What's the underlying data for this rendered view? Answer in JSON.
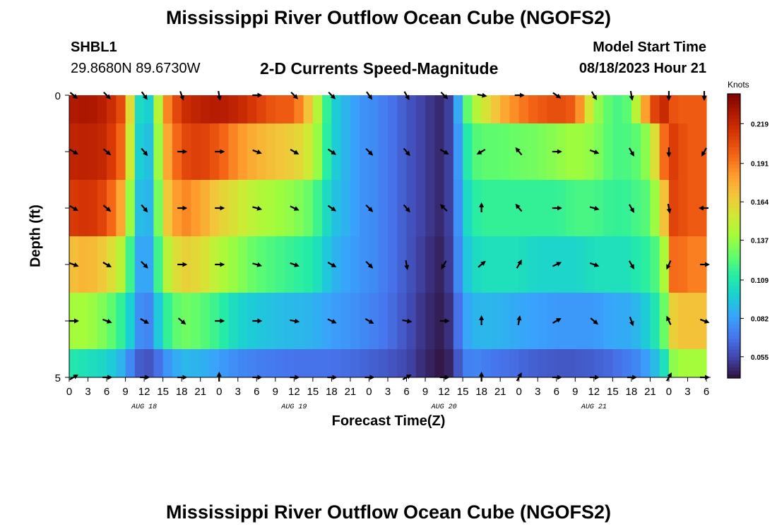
{
  "header": {
    "title": "Mississippi River Outflow Ocean Cube (NGOFS2)",
    "station_id": "SHBL1",
    "station_coords": "29.8680N  89.6730W",
    "subtitle": "2-D Currents Speed-Magnitude",
    "model_start_label": "Model Start Time",
    "model_start_value": "08/18/2023 Hour 21"
  },
  "footer": {
    "title": "Mississippi River Outflow Ocean Cube (NGOFS2)"
  },
  "chart_data": {
    "type": "heatmap",
    "xlabel": "Forecast Time(Z)",
    "ylabel": "Depth (ft)",
    "x_hours_from_start": [
      0,
      3,
      6,
      9,
      12,
      15,
      18,
      21,
      24,
      27,
      30,
      33,
      36,
      39,
      42,
      45,
      48,
      51,
      54,
      57,
      60,
      63,
      66,
      69,
      72,
      75,
      78,
      81,
      84,
      87
    ],
    "x_tick_labels": [
      "0",
      "3",
      "6",
      "9",
      "12",
      "15",
      "18",
      "21",
      "0",
      "3",
      "6",
      "9",
      "12",
      "15",
      "18",
      "21",
      "0",
      "3",
      "6",
      "9",
      "12",
      "15",
      "18",
      "21",
      "0",
      "3",
      "6",
      "9",
      "12",
      "15",
      "18",
      "21",
      "0",
      "3",
      "6"
    ],
    "x_tick_hours": [
      0,
      3,
      6,
      9,
      12,
      15,
      18,
      21,
      24,
      27,
      30,
      33,
      36,
      39,
      42,
      45,
      48,
      51,
      54,
      57,
      60,
      63,
      66,
      69,
      72,
      75,
      78,
      81,
      84,
      87,
      90,
      93,
      96,
      99,
      102
    ],
    "date_labels": [
      {
        "label": "AUG 18",
        "hour": 12
      },
      {
        "label": "AUG 19",
        "hour": 36
      },
      {
        "label": "AUG 20",
        "hour": 60
      },
      {
        "label": "AUG 21",
        "hour": 84
      }
    ],
    "y_tick_labels": [
      "0",
      "5"
    ],
    "ylim": [
      5,
      0
    ],
    "depth_levels": 5,
    "colorbar": {
      "unit": "Knots",
      "ticks": [
        "0.219",
        "0.191",
        "0.164",
        "0.137",
        "0.109",
        "0.082",
        "0.055"
      ],
      "range": [
        0.04,
        0.24
      ],
      "colors": [
        "#30123b",
        "#4145ab",
        "#4675ed",
        "#39a2fc",
        "#1bcfd4",
        "#24eca6",
        "#61fc6c",
        "#a4fc3b",
        "#d1e834",
        "#f3c63a",
        "#fe9b2d",
        "#f36315",
        "#d93806",
        "#b11901",
        "#7a0403"
      ]
    },
    "time_hours": [
      0,
      3,
      6,
      9,
      10.5,
      12,
      13.5,
      15,
      18,
      21,
      24,
      27,
      30,
      33,
      36,
      39,
      42,
      45,
      47,
      49,
      51,
      54,
      57,
      60,
      61.5,
      63,
      64.5,
      66,
      69,
      72,
      75,
      78,
      81,
      84,
      87,
      89,
      91,
      93,
      95,
      96,
      97,
      99,
      100,
      101,
      102
    ],
    "speed_by_layer": [
      [
        0.225,
        0.228,
        0.222,
        0.2,
        0.12,
        0.085,
        0.11,
        0.18,
        0.215,
        0.222,
        0.225,
        0.22,
        0.21,
        0.2,
        0.2,
        0.16,
        0.1,
        0.085,
        0.078,
        0.075,
        0.07,
        0.06,
        0.052,
        0.045,
        0.06,
        0.11,
        0.14,
        0.15,
        0.175,
        0.19,
        0.2,
        0.205,
        0.2,
        0.14,
        0.12,
        0.12,
        0.15,
        0.2,
        0.22,
        0.21,
        0.2,
        0.2,
        0.2,
        0.2,
        0.2
      ],
      [
        0.22,
        0.222,
        0.218,
        0.19,
        0.115,
        0.08,
        0.105,
        0.17,
        0.205,
        0.21,
        0.2,
        0.185,
        0.175,
        0.17,
        0.165,
        0.15,
        0.1,
        0.085,
        0.078,
        0.075,
        0.07,
        0.06,
        0.052,
        0.045,
        0.06,
        0.1,
        0.12,
        0.125,
        0.125,
        0.128,
        0.13,
        0.135,
        0.14,
        0.135,
        0.12,
        0.12,
        0.125,
        0.14,
        0.19,
        0.21,
        0.21,
        0.2,
        0.2,
        0.2,
        0.2
      ],
      [
        0.21,
        0.215,
        0.205,
        0.17,
        0.105,
        0.078,
        0.1,
        0.16,
        0.19,
        0.18,
        0.165,
        0.155,
        0.145,
        0.14,
        0.135,
        0.125,
        0.095,
        0.085,
        0.078,
        0.075,
        0.07,
        0.06,
        0.052,
        0.045,
        0.06,
        0.095,
        0.11,
        0.115,
        0.115,
        0.115,
        0.115,
        0.115,
        0.12,
        0.12,
        0.115,
        0.115,
        0.12,
        0.125,
        0.16,
        0.2,
        0.21,
        0.2,
        0.2,
        0.2,
        0.2
      ],
      [
        0.17,
        0.175,
        0.165,
        0.14,
        0.095,
        0.074,
        0.095,
        0.14,
        0.165,
        0.16,
        0.145,
        0.135,
        0.125,
        0.12,
        0.115,
        0.11,
        0.09,
        0.082,
        0.078,
        0.075,
        0.07,
        0.06,
        0.05,
        0.043,
        0.06,
        0.09,
        0.1,
        0.105,
        0.105,
        0.105,
        0.1,
        0.1,
        0.1,
        0.105,
        0.105,
        0.105,
        0.11,
        0.115,
        0.13,
        0.18,
        0.2,
        0.19,
        0.19,
        0.19,
        0.19
      ],
      [
        0.14,
        0.14,
        0.13,
        0.11,
        0.085,
        0.068,
        0.08,
        0.11,
        0.13,
        0.125,
        0.115,
        0.1,
        0.095,
        0.092,
        0.09,
        0.088,
        0.082,
        0.078,
        0.075,
        0.072,
        0.068,
        0.058,
        0.048,
        0.042,
        0.055,
        0.08,
        0.088,
        0.09,
        0.088,
        0.085,
        0.082,
        0.08,
        0.08,
        0.08,
        0.085,
        0.085,
        0.09,
        0.1,
        0.12,
        0.15,
        0.17,
        0.17,
        0.17,
        0.17,
        0.17
      ],
      [
        0.11,
        0.105,
        0.1,
        0.085,
        0.065,
        0.058,
        0.06,
        0.075,
        0.09,
        0.088,
        0.082,
        0.075,
        0.072,
        0.07,
        0.068,
        0.068,
        0.068,
        0.066,
        0.064,
        0.062,
        0.06,
        0.055,
        0.046,
        0.04,
        0.05,
        0.07,
        0.075,
        0.072,
        0.068,
        0.065,
        0.062,
        0.06,
        0.06,
        0.062,
        0.066,
        0.07,
        0.075,
        0.085,
        0.1,
        0.12,
        0.14,
        0.14,
        0.14,
        0.14,
        0.14
      ]
    ],
    "vector_hours": [
      0,
      6,
      12,
      18,
      24,
      30,
      36,
      42,
      48,
      54,
      60,
      66,
      72,
      78,
      84,
      90,
      96,
      102
    ],
    "vector_angles_deg": [
      [
        40,
        45,
        55,
        70,
        80,
        0,
        45,
        45,
        55,
        60,
        45,
        10,
        0,
        35,
        60,
        80,
        90,
        90
      ],
      [
        30,
        40,
        50,
        0,
        0,
        20,
        30,
        35,
        45,
        50,
        30,
        150,
        230,
        0,
        20,
        60,
        90,
        120
      ],
      [
        30,
        40,
        50,
        0,
        0,
        15,
        25,
        35,
        45,
        50,
        225,
        270,
        230,
        0,
        15,
        60,
        80,
        180
      ],
      [
        20,
        30,
        45,
        0,
        0,
        15,
        20,
        30,
        45,
        80,
        120,
        320,
        300,
        335,
        20,
        60,
        115,
        0
      ],
      [
        0,
        20,
        30,
        40,
        0,
        0,
        10,
        25,
        30,
        10,
        0,
        270,
        280,
        330,
        40,
        70,
        245,
        20
      ],
      [
        330,
        0,
        0,
        0,
        270,
        0,
        0,
        0,
        0,
        330,
        0,
        270,
        300,
        0,
        0,
        0,
        300,
        0
      ]
    ]
  }
}
